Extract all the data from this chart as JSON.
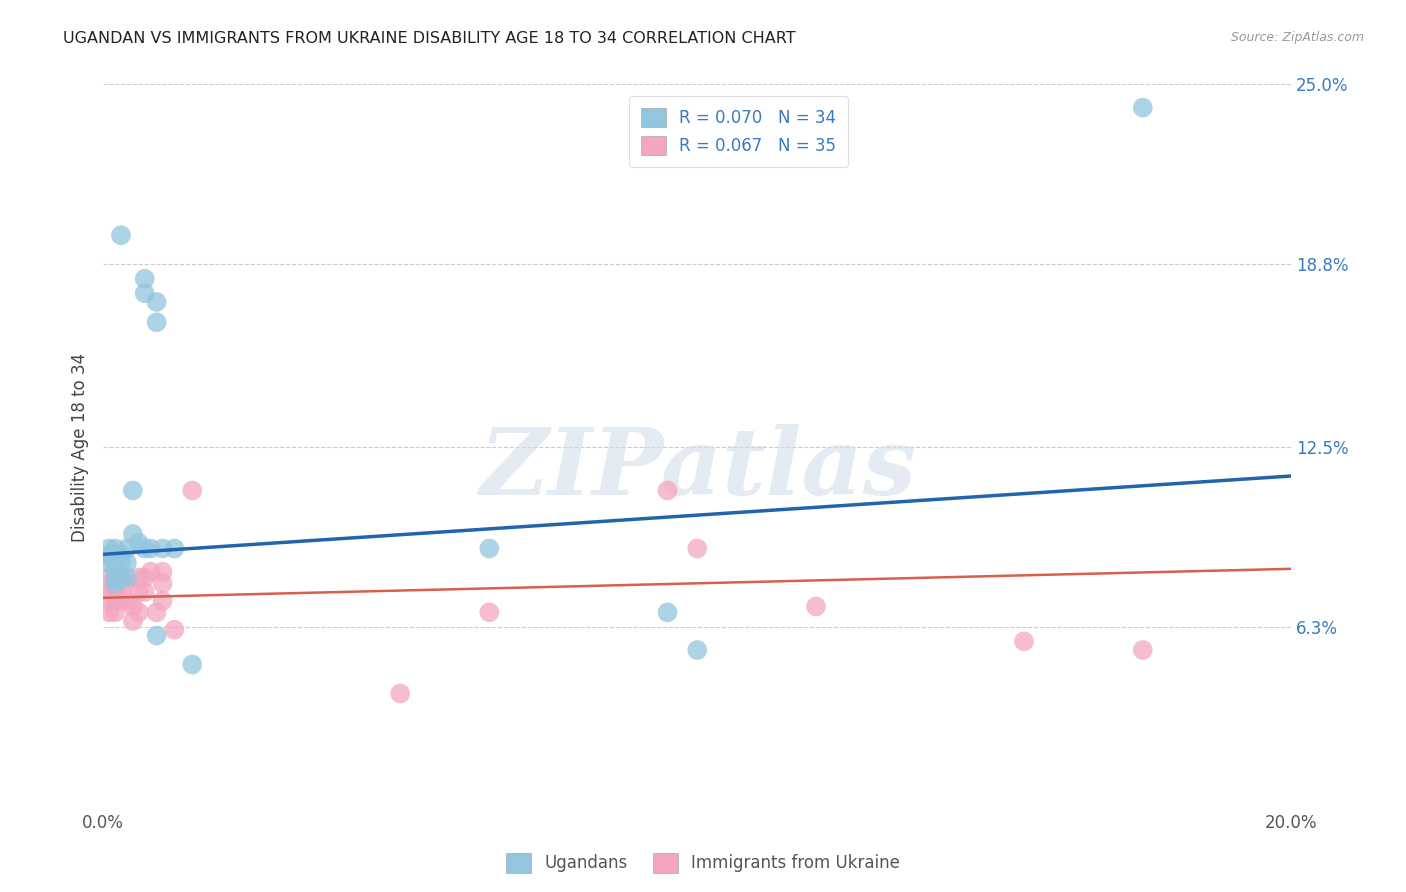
{
  "title": "UGANDAN VS IMMIGRANTS FROM UKRAINE DISABILITY AGE 18 TO 34 CORRELATION CHART",
  "source": "Source: ZipAtlas.com",
  "ylabel": "Disability Age 18 to 34",
  "xlim": [
    0.0,
    0.2
  ],
  "ylim": [
    0.0,
    0.25
  ],
  "xticks": [
    0.0,
    0.04,
    0.08,
    0.12,
    0.16,
    0.2
  ],
  "xtick_labels": [
    "0.0%",
    "",
    "",
    "",
    "",
    "20.0%"
  ],
  "ytick_labels_right": [
    "25.0%",
    "18.8%",
    "12.5%",
    "6.3%"
  ],
  "ytick_vals_right": [
    0.25,
    0.188,
    0.125,
    0.063
  ],
  "watermark": "ZIPatlas",
  "legend_label1": "Ugandans",
  "legend_label2": "Immigrants from Ukraine",
  "blue_color": "#92c5de",
  "pink_color": "#f4a6c0",
  "blue_line_color": "#2166ac",
  "pink_line_color": "#d6604d",
  "legend_text_color": "#3a7abf",
  "blue_x": [
    0.003,
    0.007,
    0.007,
    0.009,
    0.009,
    0.001,
    0.001,
    0.001,
    0.001,
    0.002,
    0.002,
    0.002,
    0.002,
    0.002,
    0.002,
    0.003,
    0.003,
    0.003,
    0.004,
    0.004,
    0.004,
    0.005,
    0.005,
    0.006,
    0.007,
    0.008,
    0.009,
    0.01,
    0.012,
    0.015,
    0.065,
    0.095,
    0.1,
    0.175
  ],
  "blue_y": [
    0.198,
    0.183,
    0.178,
    0.175,
    0.168,
    0.09,
    0.088,
    0.087,
    0.085,
    0.09,
    0.088,
    0.086,
    0.083,
    0.08,
    0.078,
    0.088,
    0.085,
    0.08,
    0.09,
    0.085,
    0.08,
    0.11,
    0.095,
    0.092,
    0.09,
    0.09,
    0.06,
    0.09,
    0.09,
    0.05,
    0.09,
    0.068,
    0.055,
    0.242
  ],
  "pink_x": [
    0.001,
    0.001,
    0.001,
    0.001,
    0.001,
    0.002,
    0.002,
    0.002,
    0.002,
    0.002,
    0.003,
    0.003,
    0.004,
    0.004,
    0.005,
    0.005,
    0.006,
    0.006,
    0.006,
    0.007,
    0.007,
    0.008,
    0.009,
    0.01,
    0.01,
    0.01,
    0.012,
    0.015,
    0.05,
    0.065,
    0.095,
    0.1,
    0.12,
    0.155,
    0.175
  ],
  "pink_y": [
    0.08,
    0.078,
    0.075,
    0.072,
    0.068,
    0.08,
    0.078,
    0.075,
    0.072,
    0.068,
    0.078,
    0.072,
    0.078,
    0.072,
    0.07,
    0.065,
    0.08,
    0.075,
    0.068,
    0.08,
    0.075,
    0.082,
    0.068,
    0.082,
    0.078,
    0.072,
    0.062,
    0.11,
    0.04,
    0.068,
    0.11,
    0.09,
    0.07,
    0.058,
    0.055
  ],
  "blue_line_x0": 0.0,
  "blue_line_y0": 0.088,
  "blue_line_x1": 0.2,
  "blue_line_y1": 0.115,
  "pink_line_x0": 0.0,
  "pink_line_y0": 0.073,
  "pink_line_x1": 0.2,
  "pink_line_y1": 0.083
}
